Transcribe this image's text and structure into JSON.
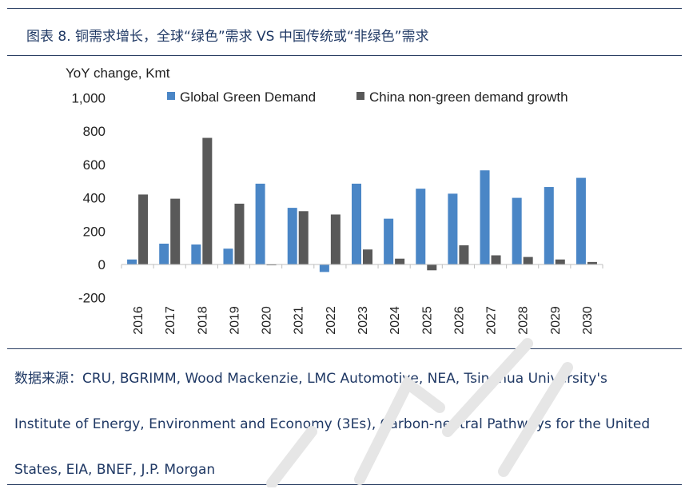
{
  "header": {
    "title": "图表 8. 铜需求增长，全球“绿色”需求 VS 中国传统或“非绿色”需求"
  },
  "chart_data": {
    "type": "bar",
    "ylabel": "YoY change, Kmt",
    "ylim": [
      -200,
      1000
    ],
    "yticks": [
      "1,000",
      "800",
      "600",
      "400",
      "200",
      "0",
      "-200"
    ],
    "categories": [
      "2016",
      "2017",
      "2018",
      "2019",
      "2020",
      "2021",
      "2022",
      "2023",
      "2024",
      "2025",
      "2026",
      "2027",
      "2028",
      "2029",
      "2030"
    ],
    "series": [
      {
        "name": "Global Green Demand",
        "color": "#4a86c6",
        "values": [
          30,
          125,
          120,
          95,
          485,
          340,
          -45,
          485,
          275,
          455,
          425,
          565,
          400,
          465,
          520
        ]
      },
      {
        "name": "China non-green demand growth",
        "color": "#595959",
        "values": [
          420,
          395,
          760,
          365,
          -5,
          320,
          300,
          90,
          35,
          -35,
          115,
          55,
          45,
          30,
          15
        ]
      }
    ],
    "legend": "top",
    "grid": false
  },
  "footer": {
    "source_line1": "数据来源：CRU, BGRIMM, Wood Mackenzie, LMC Automotive, NEA, Tsinghua University's",
    "source_line2": "Institute of Energy, Environment and Economy (3Es), Carbon-neutral Pathways for the United",
    "source_line3": "States, EIA, BNEF, J.P. Morgan"
  }
}
